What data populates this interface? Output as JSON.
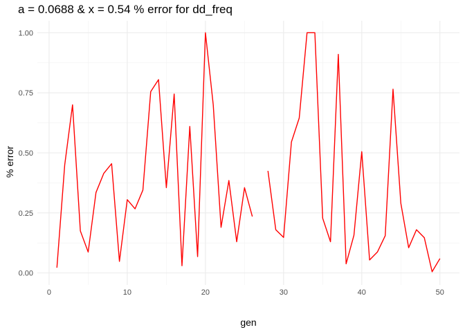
{
  "chart_data": {
    "type": "line",
    "title": "a = 0.0688 & x = 0.54 % error for dd_freq",
    "xlabel": "gen",
    "ylabel": "% error",
    "xlim": [
      -1.5,
      52.5
    ],
    "ylim": [
      -0.05,
      1.05
    ],
    "x_ticks": [
      0,
      10,
      20,
      30,
      40,
      50
    ],
    "y_ticks": [
      0.0,
      0.25,
      0.5,
      0.75,
      1.0
    ],
    "x_tick_labels": [
      "0",
      "10",
      "20",
      "30",
      "40",
      "50"
    ],
    "y_tick_labels": [
      "0.00",
      "0.25",
      "0.50",
      "0.75",
      "1.00"
    ],
    "grid": true,
    "legend": "none",
    "series": [
      {
        "color": "#ff0000",
        "x": [
          1,
          2,
          3,
          4,
          5,
          6,
          7,
          8,
          9,
          10,
          11,
          12,
          13,
          14,
          15,
          16,
          17,
          18,
          19,
          20,
          21,
          22,
          23,
          24,
          25,
          26,
          27,
          28,
          29,
          30,
          31,
          32,
          33,
          34,
          35,
          36,
          37,
          38,
          39,
          40,
          41,
          42,
          43,
          44,
          45,
          46,
          47,
          48,
          49,
          50
        ],
        "y": [
          0.022,
          0.45,
          0.7,
          0.175,
          0.087,
          0.335,
          0.415,
          0.455,
          0.048,
          0.305,
          0.267,
          0.345,
          0.755,
          0.805,
          0.355,
          0.745,
          0.03,
          0.61,
          0.068,
          1.0,
          0.7,
          0.19,
          0.385,
          0.13,
          0.355,
          0.235,
          null,
          0.425,
          0.18,
          0.148,
          0.545,
          0.645,
          1.0,
          1.0,
          0.228,
          0.13,
          0.91,
          0.038,
          0.157,
          0.505,
          0.054,
          0.087,
          0.155,
          0.765,
          0.29,
          0.105,
          0.18,
          0.147,
          0.005,
          0.06
        ]
      }
    ]
  }
}
